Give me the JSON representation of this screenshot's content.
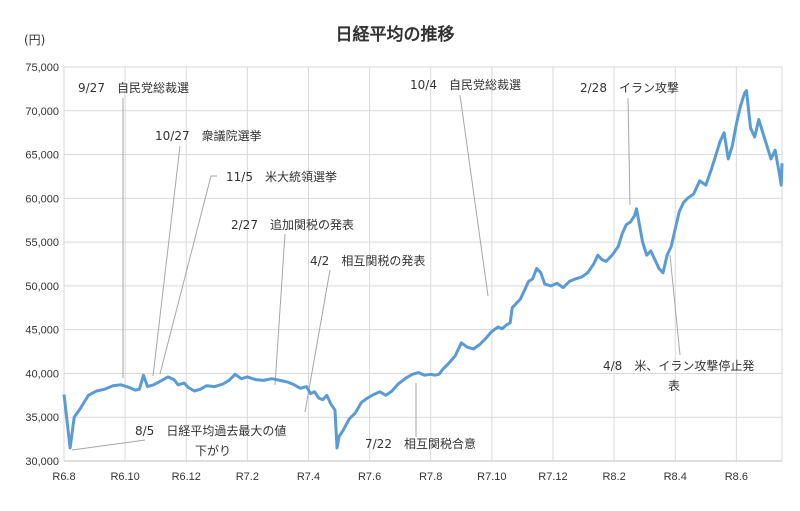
{
  "chart_data": {
    "type": "line",
    "title": "日経平均の推移",
    "ylabel": "(円)",
    "ylim": [
      30000,
      75000
    ],
    "yticks": [
      "30,000",
      "35,000",
      "40,000",
      "45,000",
      "50,000",
      "55,000",
      "60,000",
      "65,000",
      "70,000",
      "75,000"
    ],
    "xticks": [
      "R6.8",
      "R6.10",
      "R6.12",
      "R7.2",
      "R7.4",
      "R7.6",
      "R7.8",
      "R7.10",
      "R7.12",
      "R8.2",
      "R8.4",
      "R8.6"
    ],
    "grid": true,
    "series": [
      {
        "color": "#5b9bd5",
        "points": [
          [
            0.0,
            37600
          ],
          [
            0.1,
            33500
          ],
          [
            0.15,
            31500
          ],
          [
            0.25,
            35000
          ],
          [
            0.4,
            36000
          ],
          [
            0.6,
            37500
          ],
          [
            0.8,
            38000
          ],
          [
            1.0,
            38200
          ],
          [
            1.2,
            38600
          ],
          [
            1.4,
            38700
          ],
          [
            1.6,
            38400
          ],
          [
            1.75,
            38100
          ],
          [
            1.85,
            38200
          ],
          [
            1.95,
            39800
          ],
          [
            2.05,
            38500
          ],
          [
            2.2,
            38700
          ],
          [
            2.4,
            39200
          ],
          [
            2.55,
            39600
          ],
          [
            2.7,
            39300
          ],
          [
            2.8,
            38700
          ],
          [
            2.95,
            38900
          ],
          [
            3.05,
            38400
          ],
          [
            3.2,
            38000
          ],
          [
            3.35,
            38200
          ],
          [
            3.5,
            38600
          ],
          [
            3.7,
            38500
          ],
          [
            3.9,
            38800
          ],
          [
            4.05,
            39200
          ],
          [
            4.2,
            39900
          ],
          [
            4.35,
            39400
          ],
          [
            4.5,
            39600
          ],
          [
            4.7,
            39300
          ],
          [
            4.9,
            39200
          ],
          [
            5.1,
            39400
          ],
          [
            5.3,
            39200
          ],
          [
            5.5,
            39000
          ],
          [
            5.65,
            38700
          ],
          [
            5.8,
            38300
          ],
          [
            5.95,
            38500
          ],
          [
            6.05,
            37700
          ],
          [
            6.15,
            37900
          ],
          [
            6.25,
            37200
          ],
          [
            6.35,
            37000
          ],
          [
            6.45,
            37500
          ],
          [
            6.55,
            36500
          ],
          [
            6.65,
            35800
          ],
          [
            6.7,
            31500
          ],
          [
            6.75,
            32800
          ],
          [
            6.85,
            33500
          ],
          [
            7.0,
            34800
          ],
          [
            7.15,
            35500
          ],
          [
            7.3,
            36700
          ],
          [
            7.45,
            37200
          ],
          [
            7.6,
            37600
          ],
          [
            7.75,
            37900
          ],
          [
            7.9,
            37500
          ],
          [
            8.05,
            38000
          ],
          [
            8.2,
            38800
          ],
          [
            8.4,
            39500
          ],
          [
            8.55,
            39900
          ],
          [
            8.7,
            40100
          ],
          [
            8.85,
            39800
          ],
          [
            9.0,
            39900
          ],
          [
            9.1,
            39800
          ],
          [
            9.2,
            39900
          ],
          [
            9.3,
            40500
          ],
          [
            9.45,
            41200
          ],
          [
            9.6,
            42000
          ],
          [
            9.75,
            43500
          ],
          [
            9.9,
            43000
          ],
          [
            10.05,
            42800
          ],
          [
            10.2,
            43300
          ],
          [
            10.35,
            44000
          ],
          [
            10.5,
            44800
          ],
          [
            10.65,
            45300
          ],
          [
            10.75,
            45100
          ],
          [
            10.85,
            45500
          ],
          [
            10.95,
            45800
          ],
          [
            11.0,
            47500
          ],
          [
            11.1,
            48000
          ],
          [
            11.2,
            48500
          ],
          [
            11.3,
            49500
          ],
          [
            11.4,
            50500
          ],
          [
            11.5,
            50800
          ],
          [
            11.6,
            52000
          ],
          [
            11.7,
            51500
          ],
          [
            11.8,
            50200
          ],
          [
            11.95,
            50000
          ],
          [
            12.1,
            50300
          ],
          [
            12.25,
            49800
          ],
          [
            12.4,
            50500
          ],
          [
            12.55,
            50800
          ],
          [
            12.7,
            51000
          ],
          [
            12.85,
            51500
          ],
          [
            13.0,
            52500
          ],
          [
            13.1,
            53500
          ],
          [
            13.2,
            53000
          ],
          [
            13.3,
            52800
          ],
          [
            13.45,
            53500
          ],
          [
            13.6,
            54500
          ],
          [
            13.7,
            56000
          ],
          [
            13.8,
            57000
          ],
          [
            13.9,
            57300
          ],
          [
            14.0,
            58000
          ],
          [
            14.05,
            58800
          ],
          [
            14.1,
            57500
          ],
          [
            14.2,
            55000
          ],
          [
            14.3,
            53500
          ],
          [
            14.4,
            54000
          ],
          [
            14.5,
            53000
          ],
          [
            14.6,
            52000
          ],
          [
            14.7,
            51500
          ],
          [
            14.8,
            53500
          ],
          [
            14.9,
            54500
          ],
          [
            15.0,
            56500
          ],
          [
            15.1,
            58500
          ],
          [
            15.2,
            59500
          ],
          [
            15.3,
            60000
          ],
          [
            15.45,
            60500
          ],
          [
            15.6,
            62000
          ],
          [
            15.75,
            61500
          ],
          [
            15.9,
            63500
          ],
          [
            16.0,
            65000
          ],
          [
            16.1,
            66500
          ],
          [
            16.2,
            67500
          ],
          [
            16.3,
            64500
          ],
          [
            16.4,
            66000
          ],
          [
            16.5,
            68500
          ],
          [
            16.6,
            70500
          ],
          [
            16.7,
            72000
          ],
          [
            16.75,
            72300
          ],
          [
            16.8,
            70000
          ],
          [
            16.85,
            68000
          ],
          [
            16.95,
            67000
          ],
          [
            17.05,
            69000
          ],
          [
            17.15,
            67500
          ],
          [
            17.25,
            66000
          ],
          [
            17.35,
            64500
          ],
          [
            17.45,
            65500
          ],
          [
            17.55,
            63000
          ],
          [
            17.6,
            61500
          ],
          [
            17.62,
            64000
          ]
        ]
      }
    ],
    "annotations": [
      {
        "label": "9/27　自民党総裁選"
      },
      {
        "label": "10/27　衆議院選挙"
      },
      {
        "label": "11/5　米大統領選挙"
      },
      {
        "label": "2/27　追加関税の発表"
      },
      {
        "label": "4/2　相互関税の発表"
      },
      {
        "label": "10/4　自民党総裁選"
      },
      {
        "label": "2/28　イラン攻撃"
      },
      {
        "label": "8/5　日経平均過去最大の値"
      },
      {
        "label": "下がり"
      },
      {
        "label": "7/22　相互関税合意"
      },
      {
        "label": "4/8　米、イラン攻撃停止発"
      },
      {
        "label": "表"
      }
    ]
  }
}
